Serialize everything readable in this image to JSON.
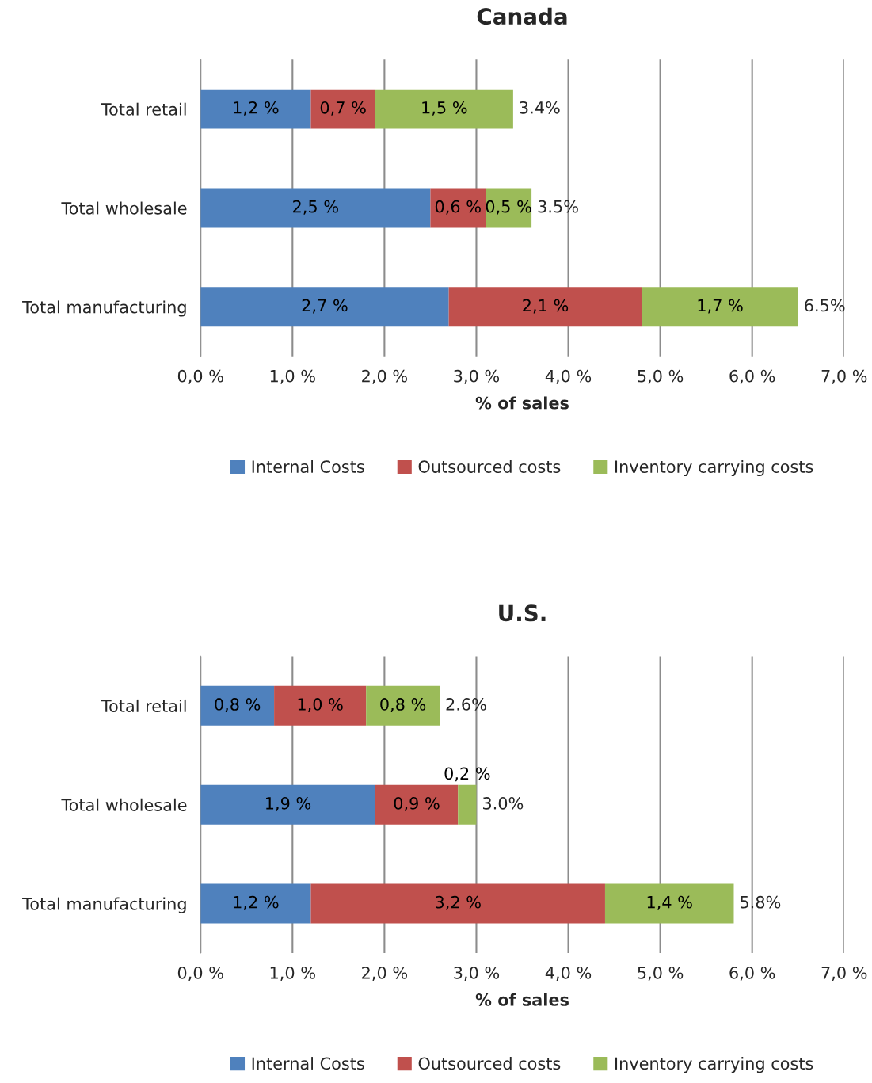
{
  "chart_data": [
    {
      "type": "bar",
      "orientation": "horizontal",
      "stacked": true,
      "title": "Canada",
      "xlabel": "% of sales",
      "categories": [
        "Total retail",
        "Total wholesale",
        "Total manufacturing"
      ],
      "series": [
        {
          "name": "Internal Costs",
          "color": "#4f81bd",
          "values": [
            1.2,
            2.5,
            2.7
          ],
          "value_labels": [
            "1,2 %",
            "2,5 %",
            "2,7 %"
          ]
        },
        {
          "name": "Outsourced costs",
          "color": "#c0504d",
          "values": [
            0.7,
            0.6,
            2.1
          ],
          "value_labels": [
            "0,7 %",
            "0,6 %",
            "2,1 %"
          ]
        },
        {
          "name": "Inventory carrying costs",
          "color": "#9bbb59",
          "values": [
            1.5,
            0.5,
            1.7
          ],
          "value_labels": [
            "1,5 %",
            "0,5 %",
            "1,7 %"
          ]
        }
      ],
      "totals": [
        "3.4%",
        "3.5%",
        "6.5%"
      ],
      "xlim": [
        0,
        7
      ],
      "xticks": [
        {
          "value": 0,
          "label": "0,0 %"
        },
        {
          "value": 1,
          "label": "1,0 %"
        },
        {
          "value": 2,
          "label": "2,0 %"
        },
        {
          "value": 3,
          "label": "3,0 %"
        },
        {
          "value": 4,
          "label": "4,0 %"
        },
        {
          "value": 5,
          "label": "5,0 %"
        },
        {
          "value": 6,
          "label": "6,0 %"
        },
        {
          "value": 7,
          "label": "7,0 %"
        }
      ],
      "grid": "x",
      "legend": "bottom"
    },
    {
      "type": "bar",
      "orientation": "horizontal",
      "stacked": true,
      "title": "U.S.",
      "xlabel": "% of sales",
      "categories": [
        "Total retail",
        "Total wholesale",
        "Total manufacturing"
      ],
      "series": [
        {
          "name": "Internal Costs",
          "color": "#4f81bd",
          "values": [
            0.8,
            1.9,
            1.2
          ],
          "value_labels": [
            "0,8 %",
            "1,9 %",
            "1,2 %"
          ]
        },
        {
          "name": "Outsourced costs",
          "color": "#c0504d",
          "values": [
            1.0,
            0.9,
            3.2
          ],
          "value_labels": [
            "1,0 %",
            "0,9 %",
            "3,2 %"
          ]
        },
        {
          "name": "Inventory carrying costs",
          "color": "#9bbb59",
          "values": [
            0.8,
            0.2,
            1.4
          ],
          "value_labels": [
            "0,8 %",
            "0,2 %",
            "1,4 %"
          ]
        }
      ],
      "totals": [
        "2.6%",
        "3.0%",
        "5.8%"
      ],
      "xlim": [
        0,
        7
      ],
      "xticks": [
        {
          "value": 0,
          "label": "0,0 %"
        },
        {
          "value": 1,
          "label": "1,0 %"
        },
        {
          "value": 2,
          "label": "2,0 %"
        },
        {
          "value": 3,
          "label": "3,0 %"
        },
        {
          "value": 4,
          "label": "4,0 %"
        },
        {
          "value": 5,
          "label": "5,0 %"
        },
        {
          "value": 6,
          "label": "6,0 %"
        },
        {
          "value": 7,
          "label": "7,0 %"
        }
      ],
      "grid": "x",
      "legend": "bottom"
    }
  ]
}
